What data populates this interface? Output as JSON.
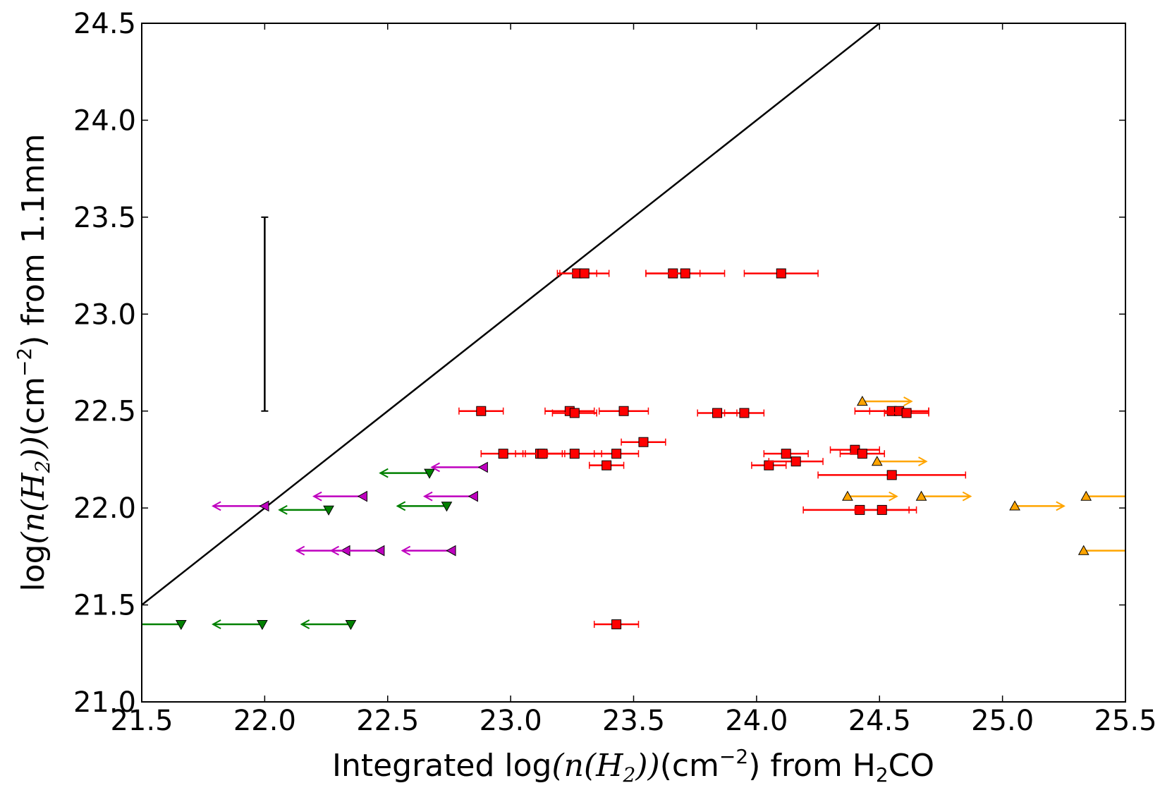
{
  "chart_data": {
    "type": "scatter",
    "title": "",
    "xlabel": {
      "pre": "Integrated log",
      "math": "(n(H",
      "sub": "2",
      "post_math": "))",
      "units_pre": "(cm",
      "units_sup": "−2",
      "units_post": ")",
      "tail": " from H",
      "tail_sub": "2",
      "tail_end": "CO"
    },
    "ylabel": {
      "pre": "log",
      "math": "(n(H",
      "sub": "2",
      "post_math": "))",
      "units_pre": "(cm",
      "units_sup": "−2",
      "units_post": ")",
      "tail": " from 1.1mm"
    },
    "xlim": [
      21.5,
      25.5
    ],
    "ylim": [
      21.0,
      24.5
    ],
    "xticks": [
      "21.5",
      "22.0",
      "22.5",
      "23.0",
      "23.5",
      "24.0",
      "24.5",
      "25.0",
      "25.5"
    ],
    "yticks": [
      "21.0",
      "21.5",
      "22.0",
      "22.5",
      "23.0",
      "23.5",
      "24.0",
      "24.5"
    ],
    "grid": false,
    "reference_line": {
      "x": [
        21.5,
        24.5
      ],
      "y": [
        21.5,
        24.5
      ],
      "color": "#000000"
    },
    "representative_errorbar": {
      "x": 22.0,
      "y_low": 22.5,
      "y_high": 23.5,
      "color": "#000000"
    },
    "series": [
      {
        "marker": "square",
        "color": "#ff0000",
        "points": [
          {
            "x": 23.27,
            "y": 23.21,
            "xerr": 0.08
          },
          {
            "x": 23.3,
            "y": 23.21,
            "xerr": 0.1
          },
          {
            "x": 23.66,
            "y": 23.21,
            "xerr": 0.11
          },
          {
            "x": 23.71,
            "y": 23.21,
            "xerr": 0.16
          },
          {
            "x": 24.1,
            "y": 23.21,
            "xerr": 0.15
          },
          {
            "x": 22.88,
            "y": 22.5,
            "xerr": 0.09
          },
          {
            "x": 23.24,
            "y": 22.5,
            "xerr": 0.1
          },
          {
            "x": 23.26,
            "y": 22.49,
            "xerr": 0.09
          },
          {
            "x": 23.46,
            "y": 22.5,
            "xerr": 0.1
          },
          {
            "x": 23.84,
            "y": 22.49,
            "xerr": 0.08
          },
          {
            "x": 23.95,
            "y": 22.49,
            "xerr": 0.08
          },
          {
            "x": 24.55,
            "y": 22.5,
            "xerr": 0.15
          },
          {
            "x": 24.58,
            "y": 22.5,
            "xerr": 0.12
          },
          {
            "x": 24.61,
            "y": 22.49,
            "xerr": 0.09
          },
          {
            "x": 22.97,
            "y": 22.28,
            "xerr": 0.09
          },
          {
            "x": 23.12,
            "y": 22.28,
            "xerr": 0.1
          },
          {
            "x": 23.13,
            "y": 22.28,
            "xerr": 0.08
          },
          {
            "x": 23.26,
            "y": 22.28,
            "xerr": 0.11
          },
          {
            "x": 23.43,
            "y": 22.28,
            "xerr": 0.09
          },
          {
            "x": 23.54,
            "y": 22.34,
            "xerr": 0.09
          },
          {
            "x": 23.39,
            "y": 22.22,
            "xerr": 0.07
          },
          {
            "x": 24.12,
            "y": 22.28,
            "xerr": 0.09
          },
          {
            "x": 24.4,
            "y": 22.3,
            "xerr": 0.1
          },
          {
            "x": 24.43,
            "y": 22.28,
            "xerr": 0.09
          },
          {
            "x": 24.05,
            "y": 22.22,
            "xerr": 0.07
          },
          {
            "x": 24.16,
            "y": 22.24,
            "xerr": 0.11
          },
          {
            "x": 24.55,
            "y": 22.17,
            "xerr": 0.3
          },
          {
            "x": 24.42,
            "y": 21.99,
            "xerr": 0.23
          },
          {
            "x": 24.51,
            "y": 21.99,
            "xerr": 0.11
          },
          {
            "x": 23.43,
            "y": 21.4,
            "xerr": 0.09
          }
        ]
      },
      {
        "marker": "triangle-down",
        "color": "#008000",
        "arrow": "left",
        "points": [
          {
            "x": 22.67,
            "y": 22.18,
            "len": 0.2
          },
          {
            "x": 22.26,
            "y": 21.99,
            "len": 0.2
          },
          {
            "x": 22.74,
            "y": 22.01,
            "len": 0.2
          },
          {
            "x": 21.66,
            "y": 21.4,
            "len": 0.2
          },
          {
            "x": 21.99,
            "y": 21.4,
            "len": 0.2
          },
          {
            "x": 22.35,
            "y": 21.4,
            "len": 0.2
          }
        ]
      },
      {
        "marker": "triangle-left",
        "color": "#bf00bf",
        "arrow": "left",
        "points": [
          {
            "x": 22.0,
            "y": 22.01,
            "len": 0.21
          },
          {
            "x": 22.4,
            "y": 22.06,
            "len": 0.2
          },
          {
            "x": 22.89,
            "y": 22.21,
            "len": 0.21
          },
          {
            "x": 22.85,
            "y": 22.06,
            "len": 0.2
          },
          {
            "x": 22.33,
            "y": 21.78,
            "len": 0.2
          },
          {
            "x": 22.47,
            "y": 21.78,
            "len": 0.2
          },
          {
            "x": 22.76,
            "y": 21.78,
            "len": 0.2
          }
        ]
      },
      {
        "marker": "triangle-up",
        "color": "#ffa500",
        "arrow": "right",
        "points": [
          {
            "x": 24.43,
            "y": 22.55,
            "len": 0.2
          },
          {
            "x": 24.49,
            "y": 22.24,
            "len": 0.2
          },
          {
            "x": 24.37,
            "y": 22.06,
            "len": 0.2
          },
          {
            "x": 24.67,
            "y": 22.06,
            "len": 0.2
          },
          {
            "x": 25.05,
            "y": 22.01,
            "len": 0.2
          },
          {
            "x": 25.34,
            "y": 22.06,
            "len": 0.2
          },
          {
            "x": 25.33,
            "y": 21.78,
            "len": 0.2
          }
        ]
      }
    ]
  }
}
